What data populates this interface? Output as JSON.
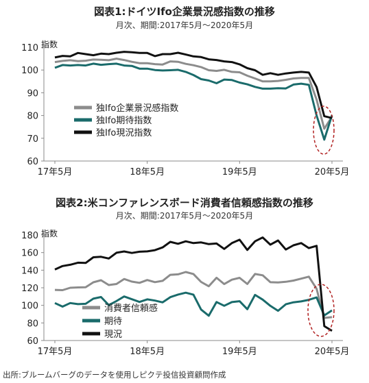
{
  "figure1": {
    "title": "図表1:ドイツIfo企業景況感指数の推移",
    "subtitle": "月次、期間:2017年5月～2020年5月"
  },
  "figure2": {
    "title": "図表2:米コンファレンスボード消費者信頼感指数の推移",
    "subtitle": "月次、期間:2017年5月～2020年5月"
  },
  "source": "出所:ブルームバーグのデータを使用しピクテ投信投資顧問作成",
  "chart_data": [
    {
      "type": "line",
      "ylabel": "指数",
      "xlabel": "",
      "ylim": [
        60,
        110
      ],
      "yticks": [
        60,
        70,
        80,
        90,
        100,
        110
      ],
      "xticks": [
        "17年5月",
        "18年5月",
        "19年5月",
        "20年5月"
      ],
      "x": [
        "2017-05",
        "2017-06",
        "2017-07",
        "2017-08",
        "2017-09",
        "2017-10",
        "2017-11",
        "2017-12",
        "2018-01",
        "2018-02",
        "2018-03",
        "2018-04",
        "2018-05",
        "2018-06",
        "2018-07",
        "2018-08",
        "2018-09",
        "2018-10",
        "2018-11",
        "2018-12",
        "2019-01",
        "2019-02",
        "2019-03",
        "2019-04",
        "2019-05",
        "2019-06",
        "2019-07",
        "2019-08",
        "2019-09",
        "2019-10",
        "2019-11",
        "2019-12",
        "2020-01",
        "2020-02",
        "2020-03",
        "2020-04",
        "2020-05"
      ],
      "grid": false,
      "legend": "middle-left",
      "series": [
        {
          "name": "独Ifo企業景況感指数",
          "color": "#8c8c8c",
          "values": [
            103.5,
            104.0,
            104.3,
            103.9,
            104.1,
            104.6,
            104.5,
            104.3,
            105.0,
            104.4,
            103.6,
            103.0,
            103.0,
            102.6,
            102.4,
            103.8,
            103.6,
            102.7,
            102.1,
            101.3,
            99.9,
            99.6,
            100.1,
            99.2,
            99.0,
            97.5,
            96.3,
            95.0,
            95.0,
            95.2,
            95.7,
            96.3,
            96.5,
            96.5,
            87.0,
            74.2,
            79.5
          ]
        },
        {
          "name": "独Ifo期待指数",
          "color": "#1a6b6b",
          "values": [
            101.0,
            102.2,
            102.0,
            102.2,
            102.0,
            102.8,
            102.3,
            102.6,
            102.8,
            102.0,
            101.8,
            100.6,
            100.6,
            100.0,
            99.8,
            99.9,
            100.1,
            99.2,
            97.8,
            96.0,
            95.4,
            94.2,
            95.8,
            95.6,
            94.5,
            93.7,
            92.6,
            91.8,
            91.8,
            92.0,
            91.9,
            93.6,
            94.0,
            93.5,
            80.0,
            69.4,
            80.1
          ]
        },
        {
          "name": "独Ifo現況指数",
          "color": "#111111",
          "values": [
            105.5,
            106.2,
            106.0,
            107.5,
            107.0,
            106.5,
            107.2,
            107.0,
            107.6,
            108.0,
            107.8,
            107.5,
            107.5,
            106.1,
            107.0,
            107.0,
            107.6,
            106.8,
            106.0,
            105.7,
            104.7,
            104.4,
            103.8,
            103.5,
            102.5,
            100.8,
            99.9,
            97.9,
            98.6,
            97.9,
            98.5,
            98.9,
            99.2,
            98.9,
            92.5,
            79.7,
            78.9
          ]
        }
      ]
    },
    {
      "type": "line",
      "ylabel": "指数",
      "xlabel": "",
      "ylim": [
        60,
        180
      ],
      "yticks": [
        60,
        80,
        100,
        120,
        140,
        160,
        180
      ],
      "xticks": [
        "17年5月",
        "18年5月",
        "19年5月",
        "20年5月"
      ],
      "x": [
        "2017-05",
        "2017-06",
        "2017-07",
        "2017-08",
        "2017-09",
        "2017-10",
        "2017-11",
        "2017-12",
        "2018-01",
        "2018-02",
        "2018-03",
        "2018-04",
        "2018-05",
        "2018-06",
        "2018-07",
        "2018-08",
        "2018-09",
        "2018-10",
        "2018-11",
        "2018-12",
        "2019-01",
        "2019-02",
        "2019-03",
        "2019-04",
        "2019-05",
        "2019-06",
        "2019-07",
        "2019-08",
        "2019-09",
        "2019-10",
        "2019-11",
        "2019-12",
        "2020-01",
        "2020-02",
        "2020-03",
        "2020-04",
        "2020-05"
      ],
      "grid": false,
      "legend": "bottom-left",
      "series": [
        {
          "name": "消費者信頼感",
          "color": "#8c8c8c",
          "values": [
            117.6,
            117.3,
            120.0,
            120.4,
            120.6,
            126.2,
            128.6,
            123.1,
            124.3,
            130.0,
            127.0,
            125.6,
            128.8,
            126.4,
            127.9,
            134.7,
            135.3,
            137.9,
            135.7,
            126.6,
            121.7,
            131.4,
            124.2,
            129.2,
            131.3,
            124.3,
            135.7,
            134.2,
            126.3,
            126.1,
            126.8,
            128.2,
            130.4,
            132.6,
            118.8,
            85.7,
            86.6
          ]
        },
        {
          "name": "期待",
          "color": "#1a6b6b",
          "values": [
            102.6,
            98.6,
            102.6,
            101.4,
            101.8,
            107.6,
            109.5,
            100.3,
            104.9,
            110.1,
            107.0,
            103.9,
            106.8,
            105.4,
            103.4,
            109.3,
            112.3,
            114.4,
            112.1,
            95.2,
            88.2,
            103.8,
            99.5,
            103.7,
            104.7,
            95.6,
            111.9,
            106.5,
            99.4,
            93.8,
            101.2,
            103.5,
            104.5,
            106.3,
            109.0,
            88.5,
            94.3
          ]
        },
        {
          "name": "現況",
          "color": "#111111",
          "values": [
            140.7,
            144.7,
            146.2,
            148.5,
            148.2,
            154.7,
            155.2,
            153.3,
            159.8,
            161.3,
            159.6,
            161.0,
            161.4,
            162.8,
            165.9,
            172.2,
            170.0,
            172.8,
            170.8,
            171.6,
            169.6,
            170.3,
            164.2,
            170.8,
            174.6,
            163.0,
            172.8,
            177.2,
            169.0,
            173.8,
            163.5,
            168.3,
            170.8,
            165.1,
            167.7,
            76.4,
            71.1
          ]
        }
      ]
    }
  ]
}
